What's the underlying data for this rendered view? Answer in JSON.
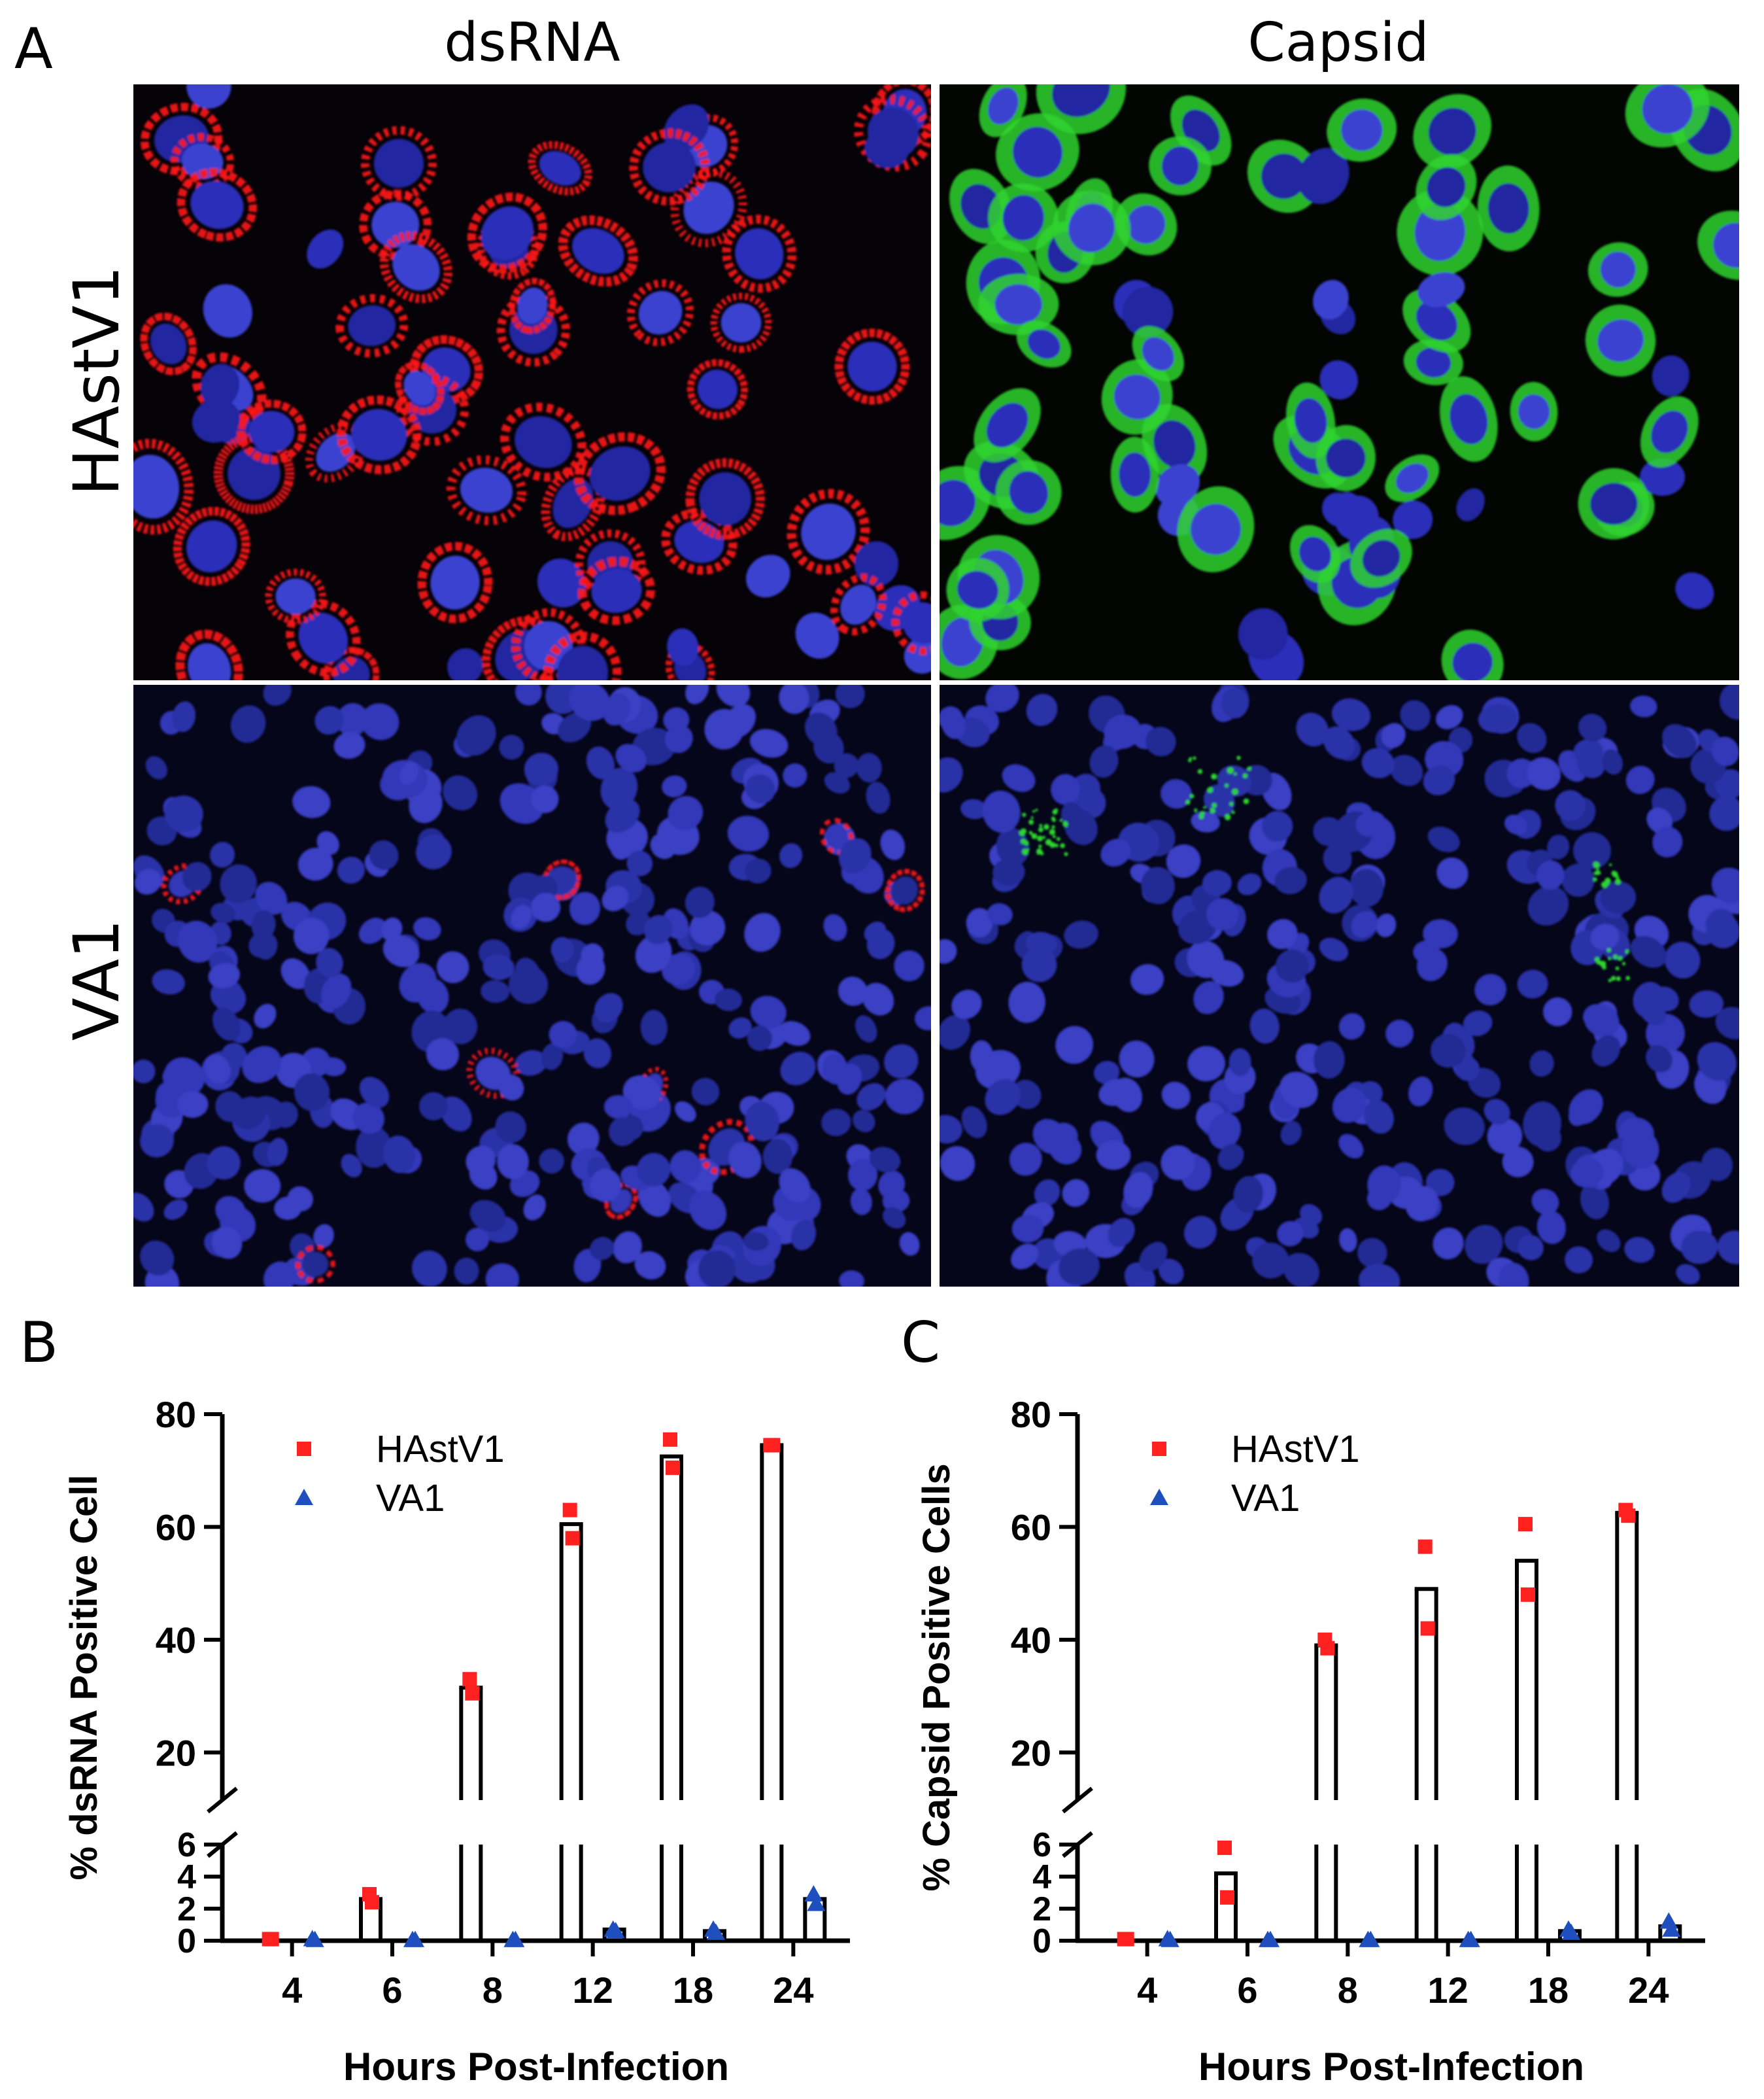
{
  "panel_a": {
    "label": "A",
    "column_titles": [
      "dsRNA",
      "Capsid"
    ],
    "row_titles": [
      "HAstV1",
      "VA1"
    ]
  },
  "colors": {
    "nuclei": "#2b2fb8",
    "dsrna_stain": "#ff1a1a",
    "capsid_stain": "#2fd42f",
    "hastv1_marker": "#ff2020",
    "va1_marker": "#1f4fbf"
  },
  "chart_data": [
    {
      "panel_label": "B",
      "type": "bar",
      "categories": [
        "4",
        "6",
        "8",
        "12",
        "18",
        "24"
      ],
      "xlabel": "Hours Post-Infection",
      "ylabel": "% dsRNA Positive Cell",
      "axis_break": true,
      "ylim_lower": [
        0,
        6
      ],
      "yticks_lower": [
        0,
        2,
        4,
        6
      ],
      "ylim_upper": [
        6,
        80
      ],
      "yticks_upper": [
        20,
        40,
        60,
        80
      ],
      "legend": [
        "HAstV1",
        "VA1"
      ],
      "legend_position": "top-left",
      "bars": {
        "HAstV1": [
          0.1,
          2.6,
          31.5,
          60.5,
          72.5,
          74.5
        ],
        "VA1": [
          0.05,
          0.05,
          0.05,
          0.7,
          0.6,
          2.6
        ]
      },
      "points": {
        "HAstV1": [
          [
            0.1,
            0.1
          ],
          [
            2.9,
            2.4
          ],
          [
            33.0,
            30.5
          ],
          [
            63.0,
            58.0
          ],
          [
            75.5,
            70.5
          ],
          [
            74.5,
            74.5
          ]
        ],
        "VA1": [
          [
            0.1,
            0.05
          ],
          [
            0.05,
            0.05
          ],
          [
            0.05,
            0.05
          ],
          [
            0.7,
            0.6
          ],
          [
            0.7,
            0.5
          ],
          [
            2.9,
            2.3
          ]
        ]
      }
    },
    {
      "panel_label": "C",
      "type": "bar",
      "categories": [
        "4",
        "6",
        "8",
        "12",
        "18",
        "24"
      ],
      "xlabel": "Hours Post-Infection",
      "ylabel": "% Capsid Positive Cells",
      "axis_break": true,
      "ylim_lower": [
        0,
        6
      ],
      "yticks_lower": [
        0,
        2,
        4,
        6
      ],
      "ylim_upper": [
        6,
        80
      ],
      "yticks_upper": [
        20,
        40,
        60,
        80
      ],
      "legend": [
        "HAstV1",
        "VA1"
      ],
      "legend_position": "top-left",
      "bars": {
        "HAstV1": [
          0.1,
          4.2,
          39.0,
          49.0,
          54.0,
          62.5
        ],
        "VA1": [
          0.05,
          0.05,
          0.05,
          0.05,
          0.6,
          0.9
        ]
      },
      "points": {
        "HAstV1": [
          [
            0.1,
            0.1
          ],
          [
            5.8,
            2.7
          ],
          [
            40.0,
            38.5
          ],
          [
            56.5,
            42.0
          ],
          [
            60.5,
            48.0
          ],
          [
            63.0,
            62.0
          ]
        ],
        "VA1": [
          [
            0.1,
            0.05
          ],
          [
            0.05,
            0.05
          ],
          [
            0.05,
            0.05
          ],
          [
            0.05,
            0.05
          ],
          [
            0.7,
            0.5
          ],
          [
            1.2,
            0.7
          ]
        ]
      }
    }
  ]
}
